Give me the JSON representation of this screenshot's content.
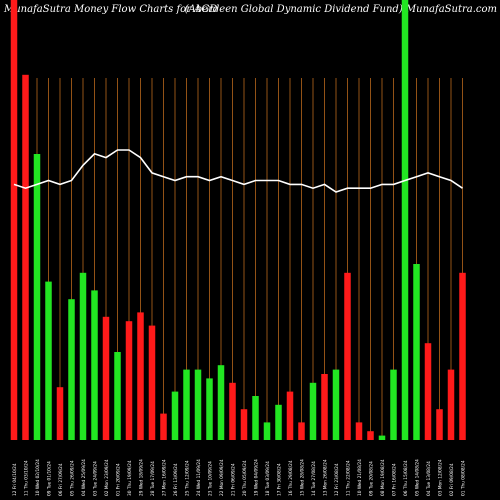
{
  "header": {
    "left": "MunafaSutra  Money Flow  Charts for AGD",
    "right": "(Aberdeen  Global Dynamic Dividend Fund) MunafaSutra.com"
  },
  "colors": {
    "background": "#000000",
    "grid": "#b8681c",
    "up": "#22e622",
    "down": "#ff1a1a",
    "line": "#ffffff",
    "text": "#ffffff"
  },
  "chart_data": {
    "type": "bar",
    "grid": true,
    "categories": [
      "12 Fri 04/10/24",
      "11 Thu 03/10/24",
      "10 Wed 02/10/24",
      "09 Tue 01/10/24",
      "06 Fri 27/09/24",
      "05 Thu 26/09/24",
      "04 Wed 25/09/24",
      "03 Tue 24/09/24",
      "02 Mon 23/09/24",
      "01 Fri 20/09/24",
      "30 Thu 19/09/24",
      "29 Wed 18/09/24",
      "28 Tue 17/09/24",
      "27 Mon 16/09/24",
      "26 Fri 13/09/24",
      "25 Thu 12/09/24",
      "24 Wed 11/09/24",
      "23 Tue 10/09/24",
      "22 Mon 09/09/24",
      "21 Fri 06/09/24",
      "20 Thu 05/09/24",
      "19 Wed 04/09/24",
      "18 Tue 03/09/24",
      "17 Fri 30/08/24",
      "16 Thu 29/08/24",
      "15 Wed 28/08/24",
      "14 Tue 27/08/24",
      "13 Mon 26/08/24",
      "12 Fri 23/08/24",
      "11 Thu 22/08/24",
      "10 Wed 21/08/24",
      "09 Tue 20/08/24",
      "08 Mon 19/08/24",
      "07 Fri 16/08/24",
      "06 Thu 15/08/24",
      "05 Wed 14/08/24",
      "04 Tue 13/08/24",
      "03 Mon 12/08/24",
      "02 Fri 09/08/24",
      "01 Thu 08/08/24"
    ],
    "volume": [
      100,
      83,
      65,
      36,
      12,
      32,
      38,
      34,
      28,
      20,
      27,
      29,
      26,
      6,
      11,
      16,
      16,
      14,
      17,
      13,
      7,
      10,
      4,
      8,
      11,
      4,
      13,
      15,
      16,
      38,
      4,
      2,
      1,
      16,
      100,
      40,
      22,
      7,
      16,
      38
    ],
    "direction": [
      "down",
      "down",
      "up",
      "up",
      "down",
      "up",
      "up",
      "up",
      "down",
      "up",
      "down",
      "down",
      "down",
      "down",
      "up",
      "up",
      "up",
      "up",
      "up",
      "down",
      "down",
      "up",
      "up",
      "up",
      "down",
      "down",
      "up",
      "down",
      "up",
      "down",
      "down",
      "down",
      "up",
      "up",
      "up",
      "up",
      "down",
      "down",
      "down",
      "down"
    ],
    "price_line": [
      31,
      30,
      31,
      32,
      31,
      32,
      36,
      39,
      38,
      40,
      40,
      38,
      34,
      33,
      32,
      33,
      33,
      32,
      33,
      32,
      31,
      32,
      32,
      32,
      31,
      31,
      30,
      31,
      29,
      30,
      30,
      30,
      31,
      31,
      32,
      33,
      34,
      33,
      32,
      30
    ],
    "ylim": [
      0,
      100
    ]
  }
}
